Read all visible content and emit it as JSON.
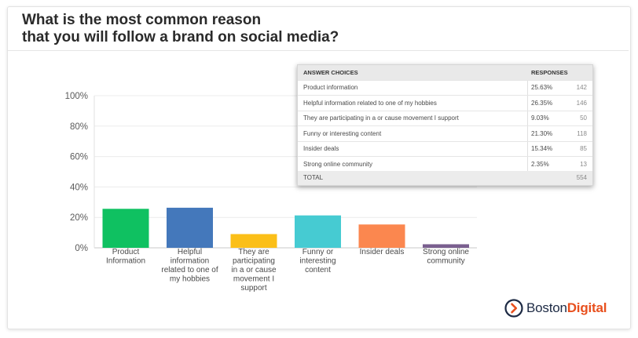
{
  "title_line1": "What is the most common reason",
  "title_line2": "that you will follow a brand on social media?",
  "chart_data": {
    "type": "bar",
    "categories": [
      [
        "Product",
        "Information"
      ],
      [
        "Helpful",
        "information",
        "related to one of",
        "my hobbies"
      ],
      [
        "They are",
        "participating",
        "in a or cause",
        "movement I",
        "support"
      ],
      [
        "Funny or",
        "interesting",
        "content"
      ],
      [
        "Insider deals"
      ],
      [
        "Strong online",
        "community"
      ]
    ],
    "values": [
      25.63,
      26.35,
      9.03,
      21.3,
      15.34,
      2.35
    ],
    "colors": [
      "#0fc161",
      "#4478bb",
      "#fbbf18",
      "#46cbd2",
      "#fb874f",
      "#7a5f8f"
    ],
    "ylim": [
      0,
      100
    ],
    "yticks": [
      0,
      20,
      40,
      60,
      80,
      100
    ],
    "ytick_labels": [
      "0%",
      "20%",
      "40%",
      "60%",
      "80%",
      "100%"
    ],
    "grid": true
  },
  "table": {
    "header": {
      "choices": "ANSWER CHOICES",
      "responses": "RESPONSES"
    },
    "rows": [
      {
        "label": "Product information",
        "pct": "25.63%",
        "count": "142"
      },
      {
        "label": "Helpful information related to one of my hobbies",
        "pct": "26.35%",
        "count": "146"
      },
      {
        "label": "They are participating in a or cause movement I support",
        "pct": "9.03%",
        "count": "50"
      },
      {
        "label": "Funny or interesting content",
        "pct": "21.30%",
        "count": "118"
      },
      {
        "label": "Insider deals",
        "pct": "15.34%",
        "count": "85"
      },
      {
        "label": "Strong online community",
        "pct": "2.35%",
        "count": "13"
      }
    ],
    "total": {
      "label": "TOTAL",
      "count": "554"
    }
  },
  "logo": {
    "name_part1": "Boston",
    "name_part2": "Digital",
    "accent": "#e8501e",
    "dark": "#1d2a44"
  }
}
